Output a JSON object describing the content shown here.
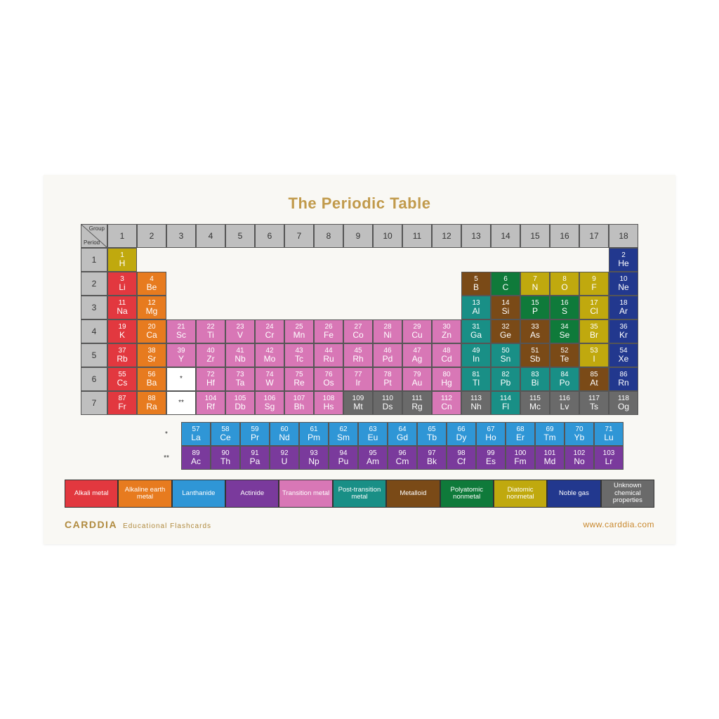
{
  "title": "The Periodic Table",
  "title_color": "#c19a4b",
  "background": "#f9f8f4",
  "header_bg": "#bfbfbf",
  "corner": {
    "group": "Group",
    "period": "Period"
  },
  "groups": [
    "1",
    "2",
    "3",
    "4",
    "5",
    "6",
    "7",
    "8",
    "9",
    "10",
    "11",
    "12",
    "13",
    "14",
    "15",
    "16",
    "17",
    "18"
  ],
  "periods": [
    "1",
    "2",
    "3",
    "4",
    "5",
    "6",
    "7"
  ],
  "colors": {
    "alkali": "#e2383f",
    "alkaline_earth": "#e77b1f",
    "lanthanide": "#2f96d6",
    "actinide": "#7a3a9c",
    "transition": "#d877b6",
    "post_transition": "#198f86",
    "metalloid": "#7a4a17",
    "polyatomic_nonmetal": "#0f7a3a",
    "diatomic_nonmetal": "#c0a90e",
    "noble_gas": "#22388e",
    "unknown": "#6a6a6a"
  },
  "elements": [
    {
      "n": 1,
      "s": "H",
      "p": 1,
      "g": 1,
      "c": "diatomic_nonmetal"
    },
    {
      "n": 2,
      "s": "He",
      "p": 1,
      "g": 18,
      "c": "noble_gas"
    },
    {
      "n": 3,
      "s": "Li",
      "p": 2,
      "g": 1,
      "c": "alkali"
    },
    {
      "n": 4,
      "s": "Be",
      "p": 2,
      "g": 2,
      "c": "alkaline_earth"
    },
    {
      "n": 5,
      "s": "B",
      "p": 2,
      "g": 13,
      "c": "metalloid"
    },
    {
      "n": 6,
      "s": "C",
      "p": 2,
      "g": 14,
      "c": "polyatomic_nonmetal"
    },
    {
      "n": 7,
      "s": "N",
      "p": 2,
      "g": 15,
      "c": "diatomic_nonmetal"
    },
    {
      "n": 8,
      "s": "O",
      "p": 2,
      "g": 16,
      "c": "diatomic_nonmetal"
    },
    {
      "n": 9,
      "s": "F",
      "p": 2,
      "g": 17,
      "c": "diatomic_nonmetal"
    },
    {
      "n": 10,
      "s": "Ne",
      "p": 2,
      "g": 18,
      "c": "noble_gas"
    },
    {
      "n": 11,
      "s": "Na",
      "p": 3,
      "g": 1,
      "c": "alkali"
    },
    {
      "n": 12,
      "s": "Mg",
      "p": 3,
      "g": 2,
      "c": "alkaline_earth"
    },
    {
      "n": 13,
      "s": "Al",
      "p": 3,
      "g": 13,
      "c": "post_transition"
    },
    {
      "n": 14,
      "s": "Si",
      "p": 3,
      "g": 14,
      "c": "metalloid"
    },
    {
      "n": 15,
      "s": "P",
      "p": 3,
      "g": 15,
      "c": "polyatomic_nonmetal"
    },
    {
      "n": 16,
      "s": "S",
      "p": 3,
      "g": 16,
      "c": "polyatomic_nonmetal"
    },
    {
      "n": 17,
      "s": "Cl",
      "p": 3,
      "g": 17,
      "c": "diatomic_nonmetal"
    },
    {
      "n": 18,
      "s": "Ar",
      "p": 3,
      "g": 18,
      "c": "noble_gas"
    },
    {
      "n": 19,
      "s": "K",
      "p": 4,
      "g": 1,
      "c": "alkali"
    },
    {
      "n": 20,
      "s": "Ca",
      "p": 4,
      "g": 2,
      "c": "alkaline_earth"
    },
    {
      "n": 21,
      "s": "Sc",
      "p": 4,
      "g": 3,
      "c": "transition"
    },
    {
      "n": 22,
      "s": "Ti",
      "p": 4,
      "g": 4,
      "c": "transition"
    },
    {
      "n": 23,
      "s": "V",
      "p": 4,
      "g": 5,
      "c": "transition"
    },
    {
      "n": 24,
      "s": "Cr",
      "p": 4,
      "g": 6,
      "c": "transition"
    },
    {
      "n": 25,
      "s": "Mn",
      "p": 4,
      "g": 7,
      "c": "transition"
    },
    {
      "n": 26,
      "s": "Fe",
      "p": 4,
      "g": 8,
      "c": "transition"
    },
    {
      "n": 27,
      "s": "Co",
      "p": 4,
      "g": 9,
      "c": "transition"
    },
    {
      "n": 28,
      "s": "Ni",
      "p": 4,
      "g": 10,
      "c": "transition"
    },
    {
      "n": 29,
      "s": "Cu",
      "p": 4,
      "g": 11,
      "c": "transition"
    },
    {
      "n": 30,
      "s": "Zn",
      "p": 4,
      "g": 12,
      "c": "transition"
    },
    {
      "n": 31,
      "s": "Ga",
      "p": 4,
      "g": 13,
      "c": "post_transition"
    },
    {
      "n": 32,
      "s": "Ge",
      "p": 4,
      "g": 14,
      "c": "metalloid"
    },
    {
      "n": 33,
      "s": "As",
      "p": 4,
      "g": 15,
      "c": "metalloid"
    },
    {
      "n": 34,
      "s": "Se",
      "p": 4,
      "g": 16,
      "c": "polyatomic_nonmetal"
    },
    {
      "n": 35,
      "s": "Br",
      "p": 4,
      "g": 17,
      "c": "diatomic_nonmetal"
    },
    {
      "n": 36,
      "s": "Kr",
      "p": 4,
      "g": 18,
      "c": "noble_gas"
    },
    {
      "n": 37,
      "s": "Rb",
      "p": 5,
      "g": 1,
      "c": "alkali"
    },
    {
      "n": 38,
      "s": "Sr",
      "p": 5,
      "g": 2,
      "c": "alkaline_earth"
    },
    {
      "n": 39,
      "s": "Y",
      "p": 5,
      "g": 3,
      "c": "transition"
    },
    {
      "n": 40,
      "s": "Zr",
      "p": 5,
      "g": 4,
      "c": "transition"
    },
    {
      "n": 41,
      "s": "Nb",
      "p": 5,
      "g": 5,
      "c": "transition"
    },
    {
      "n": 42,
      "s": "Mo",
      "p": 5,
      "g": 6,
      "c": "transition"
    },
    {
      "n": 43,
      "s": "Tc",
      "p": 5,
      "g": 7,
      "c": "transition"
    },
    {
      "n": 44,
      "s": "Ru",
      "p": 5,
      "g": 8,
      "c": "transition"
    },
    {
      "n": 45,
      "s": "Rh",
      "p": 5,
      "g": 9,
      "c": "transition"
    },
    {
      "n": 46,
      "s": "Pd",
      "p": 5,
      "g": 10,
      "c": "transition"
    },
    {
      "n": 47,
      "s": "Ag",
      "p": 5,
      "g": 11,
      "c": "transition"
    },
    {
      "n": 48,
      "s": "Cd",
      "p": 5,
      "g": 12,
      "c": "transition"
    },
    {
      "n": 49,
      "s": "In",
      "p": 5,
      "g": 13,
      "c": "post_transition"
    },
    {
      "n": 50,
      "s": "Sn",
      "p": 5,
      "g": 14,
      "c": "post_transition"
    },
    {
      "n": 51,
      "s": "Sb",
      "p": 5,
      "g": 15,
      "c": "metalloid"
    },
    {
      "n": 52,
      "s": "Te",
      "p": 5,
      "g": 16,
      "c": "metalloid"
    },
    {
      "n": 53,
      "s": "I",
      "p": 5,
      "g": 17,
      "c": "diatomic_nonmetal"
    },
    {
      "n": 54,
      "s": "Xe",
      "p": 5,
      "g": 18,
      "c": "noble_gas"
    },
    {
      "n": 55,
      "s": "Cs",
      "p": 6,
      "g": 1,
      "c": "alkali"
    },
    {
      "n": 56,
      "s": "Ba",
      "p": 6,
      "g": 2,
      "c": "alkaline_earth"
    },
    {
      "n": 72,
      "s": "Hf",
      "p": 6,
      "g": 4,
      "c": "transition"
    },
    {
      "n": 73,
      "s": "Ta",
      "p": 6,
      "g": 5,
      "c": "transition"
    },
    {
      "n": 74,
      "s": "W",
      "p": 6,
      "g": 6,
      "c": "transition"
    },
    {
      "n": 75,
      "s": "Re",
      "p": 6,
      "g": 7,
      "c": "transition"
    },
    {
      "n": 76,
      "s": "Os",
      "p": 6,
      "g": 8,
      "c": "transition"
    },
    {
      "n": 77,
      "s": "Ir",
      "p": 6,
      "g": 9,
      "c": "transition"
    },
    {
      "n": 78,
      "s": "Pt",
      "p": 6,
      "g": 10,
      "c": "transition"
    },
    {
      "n": 79,
      "s": "Au",
      "p": 6,
      "g": 11,
      "c": "transition"
    },
    {
      "n": 80,
      "s": "Hg",
      "p": 6,
      "g": 12,
      "c": "transition"
    },
    {
      "n": 81,
      "s": "Tl",
      "p": 6,
      "g": 13,
      "c": "post_transition"
    },
    {
      "n": 82,
      "s": "Pb",
      "p": 6,
      "g": 14,
      "c": "post_transition"
    },
    {
      "n": 83,
      "s": "Bi",
      "p": 6,
      "g": 15,
      "c": "post_transition"
    },
    {
      "n": 84,
      "s": "Po",
      "p": 6,
      "g": 16,
      "c": "post_transition"
    },
    {
      "n": 85,
      "s": "At",
      "p": 6,
      "g": 17,
      "c": "metalloid"
    },
    {
      "n": 86,
      "s": "Rn",
      "p": 6,
      "g": 18,
      "c": "noble_gas"
    },
    {
      "n": 87,
      "s": "Fr",
      "p": 7,
      "g": 1,
      "c": "alkali"
    },
    {
      "n": 88,
      "s": "Ra",
      "p": 7,
      "g": 2,
      "c": "alkaline_earth"
    },
    {
      "n": 104,
      "s": "Rf",
      "p": 7,
      "g": 4,
      "c": "transition"
    },
    {
      "n": 105,
      "s": "Db",
      "p": 7,
      "g": 5,
      "c": "transition"
    },
    {
      "n": 106,
      "s": "Sg",
      "p": 7,
      "g": 6,
      "c": "transition"
    },
    {
      "n": 107,
      "s": "Bh",
      "p": 7,
      "g": 7,
      "c": "transition"
    },
    {
      "n": 108,
      "s": "Hs",
      "p": 7,
      "g": 8,
      "c": "transition"
    },
    {
      "n": 109,
      "s": "Mt",
      "p": 7,
      "g": 9,
      "c": "unknown"
    },
    {
      "n": 110,
      "s": "Ds",
      "p": 7,
      "g": 10,
      "c": "unknown"
    },
    {
      "n": 111,
      "s": "Rg",
      "p": 7,
      "g": 11,
      "c": "unknown"
    },
    {
      "n": 112,
      "s": "Cn",
      "p": 7,
      "g": 12,
      "c": "transition"
    },
    {
      "n": 113,
      "s": "Nh",
      "p": 7,
      "g": 13,
      "c": "unknown"
    },
    {
      "n": 114,
      "s": "Fl",
      "p": 7,
      "g": 14,
      "c": "post_transition"
    },
    {
      "n": 115,
      "s": "Mc",
      "p": 7,
      "g": 15,
      "c": "unknown"
    },
    {
      "n": 116,
      "s": "Lv",
      "p": 7,
      "g": 16,
      "c": "unknown"
    },
    {
      "n": 117,
      "s": "Ts",
      "p": 7,
      "g": 17,
      "c": "unknown"
    },
    {
      "n": 118,
      "s": "Og",
      "p": 7,
      "g": 18,
      "c": "unknown"
    }
  ],
  "markers": {
    "p6g3": "*",
    "p7g3": "**"
  },
  "lanthanides": [
    {
      "n": 57,
      "s": "La"
    },
    {
      "n": 58,
      "s": "Ce"
    },
    {
      "n": 59,
      "s": "Pr"
    },
    {
      "n": 60,
      "s": "Nd"
    },
    {
      "n": 61,
      "s": "Pm"
    },
    {
      "n": 62,
      "s": "Sm"
    },
    {
      "n": 63,
      "s": "Eu"
    },
    {
      "n": 64,
      "s": "Gd"
    },
    {
      "n": 65,
      "s": "Tb"
    },
    {
      "n": 66,
      "s": "Dy"
    },
    {
      "n": 67,
      "s": "Ho"
    },
    {
      "n": 68,
      "s": "Er"
    },
    {
      "n": 69,
      "s": "Tm"
    },
    {
      "n": 70,
      "s": "Yb"
    },
    {
      "n": 71,
      "s": "Lu"
    }
  ],
  "actinides": [
    {
      "n": 89,
      "s": "Ac"
    },
    {
      "n": 90,
      "s": "Th"
    },
    {
      "n": 91,
      "s": "Pa"
    },
    {
      "n": 92,
      "s": "U"
    },
    {
      "n": 93,
      "s": "Np"
    },
    {
      "n": 94,
      "s": "Pu"
    },
    {
      "n": 95,
      "s": "Am"
    },
    {
      "n": 96,
      "s": "Cm"
    },
    {
      "n": 97,
      "s": "Bk"
    },
    {
      "n": 98,
      "s": "Cf"
    },
    {
      "n": 99,
      "s": "Es"
    },
    {
      "n": 100,
      "s": "Fm"
    },
    {
      "n": 101,
      "s": "Md"
    },
    {
      "n": 102,
      "s": "No"
    },
    {
      "n": 103,
      "s": "Lr"
    }
  ],
  "f_labels": {
    "lan": "*",
    "act": "**"
  },
  "legend": [
    {
      "label": "Alkali metal",
      "c": "alkali"
    },
    {
      "label": "Alkaline earth metal",
      "c": "alkaline_earth"
    },
    {
      "label": "Lanthanide",
      "c": "lanthanide"
    },
    {
      "label": "Actinide",
      "c": "actinide"
    },
    {
      "label": "Transition metal",
      "c": "transition"
    },
    {
      "label": "Post-transition metal",
      "c": "post_transition"
    },
    {
      "label": "Metalloid",
      "c": "metalloid"
    },
    {
      "label": "Polyatomic nonmetal",
      "c": "polyatomic_nonmetal"
    },
    {
      "label": "Diatomic nonmetal",
      "c": "diatomic_nonmetal"
    },
    {
      "label": "Noble gas",
      "c": "noble_gas"
    },
    {
      "label": "Unknown chemical properties",
      "c": "unknown"
    }
  ],
  "footer": {
    "brand": "CARDDIA",
    "brand_color": "#b08a3e",
    "tagline": "Educational  Flashcards",
    "url": "www.carddia.com",
    "url_color": "#c8872c"
  }
}
